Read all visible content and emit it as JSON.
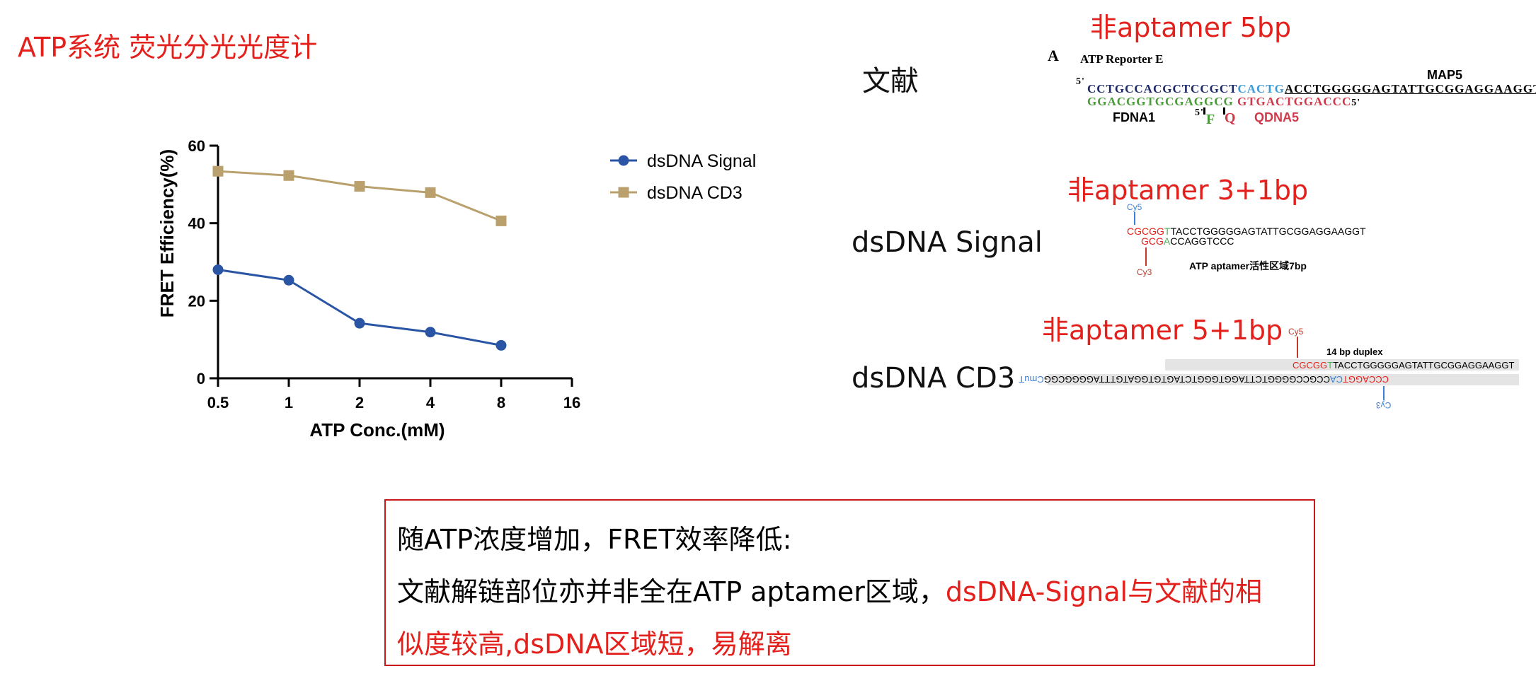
{
  "slide": {
    "title": "ATP系统 荧光分光光度计"
  },
  "chart_data": {
    "type": "line",
    "xlabel": "ATP Conc.(mM)",
    "ylabel": "FRET Efficiency(%)",
    "x_scale": "log2",
    "x_ticks": [
      "0.5",
      "1",
      "2",
      "4",
      "8",
      "16"
    ],
    "y_ticks": [
      "0",
      "20",
      "40",
      "60"
    ],
    "ylim": [
      0,
      60
    ],
    "xlim": [
      0.5,
      16
    ],
    "legend_position": "right",
    "x": [
      0.5,
      1,
      2,
      4,
      8
    ],
    "series": [
      {
        "name": "dsDNA Signal",
        "values": [
          28,
          25.3,
          14.2,
          11.9,
          8.5
        ],
        "color": "#2a55a4",
        "marker": "circle"
      },
      {
        "name": "dsDNA CD3",
        "values": [
          53.4,
          52.3,
          49.5,
          47.9,
          40.6
        ],
        "color": "#b9a06c",
        "marker": "square"
      }
    ]
  },
  "panels": {
    "literature": {
      "label": "文献",
      "heading": "非aptamer 5bp",
      "panel_letter": "A",
      "construct_name": "ATP Reporter E",
      "top_prime": "5'",
      "top_seq_1": "CCTGCCACGCTCCGCT",
      "top_seq_2": "CACTG",
      "top_seq_3": "ACCTGGGGGAGTATTGCGGAGGAAGGT",
      "bottom_seq_1": "GGACGGTGCGAGGCG",
      "bottom_seq_2": "GTGACTGGACCC",
      "bottom_prime": "5'",
      "strand_label_map5": "MAP5",
      "strand_label_fdna1": "FDNA1",
      "strand_label_qdna5": "QDNA5",
      "f_prime": "5'",
      "f_label": "F",
      "q_label": "Q",
      "colors": {
        "navy": "#1c2a6b",
        "blue": "#3b9ad9",
        "green": "#4a9a3a",
        "red": "#d1384a"
      }
    },
    "signal": {
      "label": "dsDNA Signal",
      "heading": "非aptamer 3+1bp",
      "dye_top": "Cy5",
      "top_seq_red": "CGCGG",
      "top_seq_green": "T",
      "top_seq_rest": "TACCTGGGGGAGTATTGCGGAGGAAGGT",
      "bottom_seq_red": "GCG",
      "bottom_seq_green": "A",
      "bottom_seq_rest": "CCAGGTCCC",
      "dye_bottom": "Cy3",
      "note": "ATP aptamer活性区域7bp"
    },
    "cd3": {
      "label": "dsDNA CD3",
      "heading": "非aptamer 5+1bp",
      "dye_top": "Cy5",
      "duplex_label": "14 bp duplex",
      "top_seq_red": "CGCGG",
      "top_seq_green": "T",
      "top_seq_rest": "TACCTGGGGGAGTATTGCGGAGGAAGGT",
      "bottom_seq_red": "CCCAGGT",
      "bottom_seq_blue": "CA",
      "bottom_seq_rest": "CCGCCGGGGTCTTAGGTGGGTCTAGTGTGGATGTTTAGGGGCGG",
      "bottom_tail": "CmuT",
      "dye_bottom": "Cy3"
    }
  },
  "notes": {
    "line1": "随ATP浓度增加，FRET效率降低:",
    "line2_black": "文献解链部位亦并非全在ATP aptamer区域，",
    "line2_red": "dsDNA-Signal与文献的相",
    "line3_red_a": "似度较高,dsDNA区域短，",
    "line3_red_b": "易解离"
  }
}
